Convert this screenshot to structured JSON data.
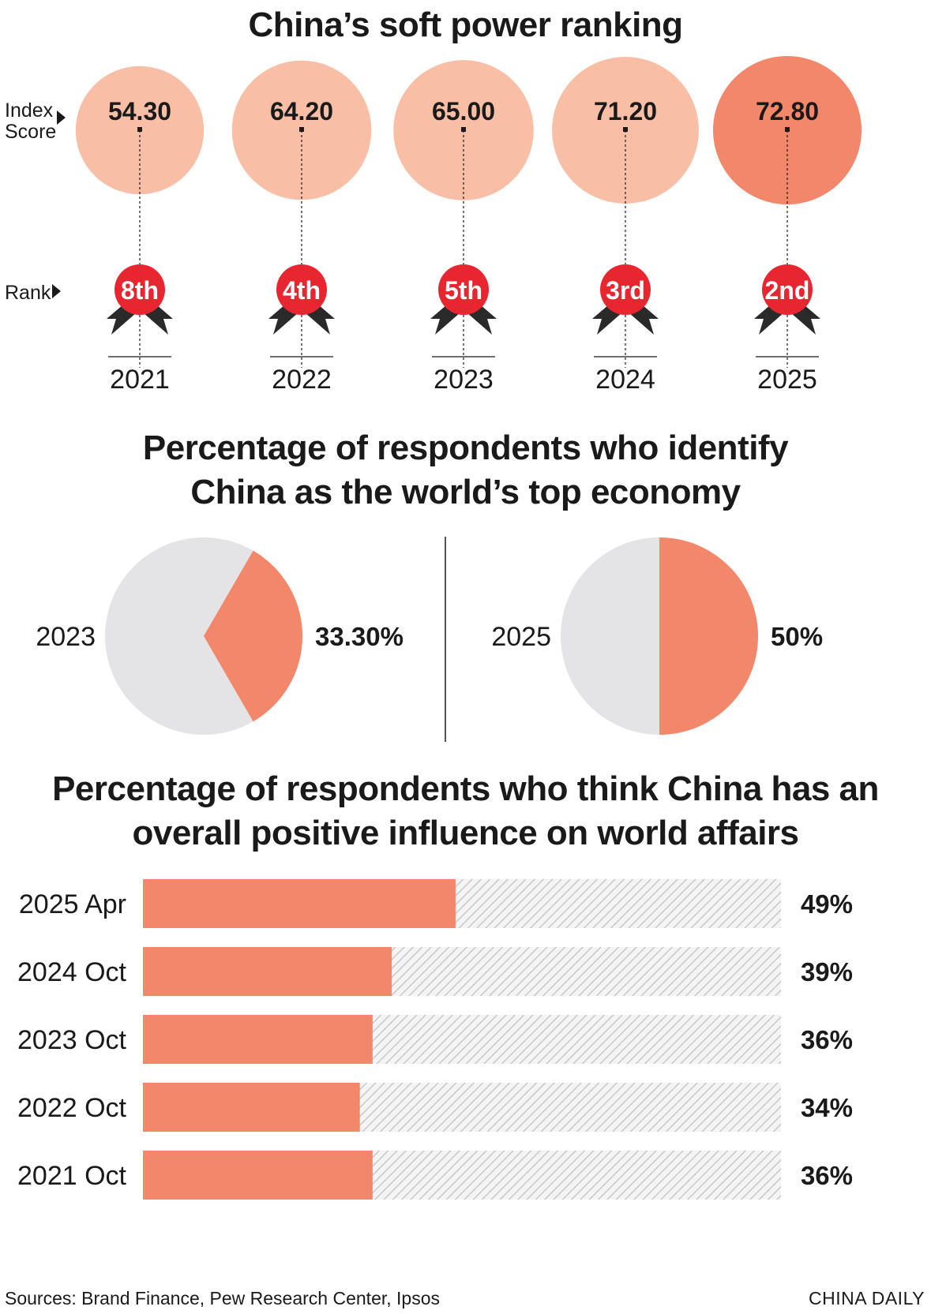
{
  "colors": {
    "light_salmon": "#f9bfa6",
    "salmon": "#f3876a",
    "red": "#e8262f",
    "grey": "#e4e4e6",
    "hatch": "#c8c8c8",
    "text": "#1a1a1a"
  },
  "footer": {
    "sources": "Sources: Brand Finance, Pew Research Center, Ipsos",
    "brand": "CHINA DAILY"
  },
  "chart_data": [
    {
      "type": "bubble",
      "title": "China’s soft power ranking",
      "row_labels": {
        "score_line1": "Index",
        "score_line2": "Score",
        "rank": "Rank"
      },
      "categories": [
        "2021",
        "2022",
        "2023",
        "2024",
        "2025"
      ],
      "scores": [
        54.3,
        64.2,
        65.0,
        71.2,
        72.8
      ],
      "score_labels": [
        "54.30",
        "64.20",
        "65.00",
        "71.20",
        "72.80"
      ],
      "ranks": [
        "8th",
        "4th",
        "5th",
        "3rd",
        "2nd"
      ],
      "highlight_index": 4
    },
    {
      "type": "pie",
      "title_line1": "Percentage of respondents who identify",
      "title_line2": "China as the world’s top economy",
      "pies": [
        {
          "year": "2023",
          "value": 33.3,
          "label": "33.30%"
        },
        {
          "year": "2025",
          "value": 50,
          "label": "50%"
        }
      ]
    },
    {
      "type": "bar",
      "orientation": "horizontal",
      "title_line1": "Percentage of respondents who think China has an",
      "title_line2": "overall positive influence on world affairs",
      "categories": [
        "2025 Apr",
        "2024 Oct",
        "2023 Oct",
        "2022 Oct",
        "2021 Oct"
      ],
      "values": [
        49,
        39,
        36,
        34,
        36
      ],
      "value_labels": [
        "49%",
        "39%",
        "36%",
        "34%",
        "36%"
      ],
      "xlim": [
        0,
        100
      ]
    }
  ]
}
